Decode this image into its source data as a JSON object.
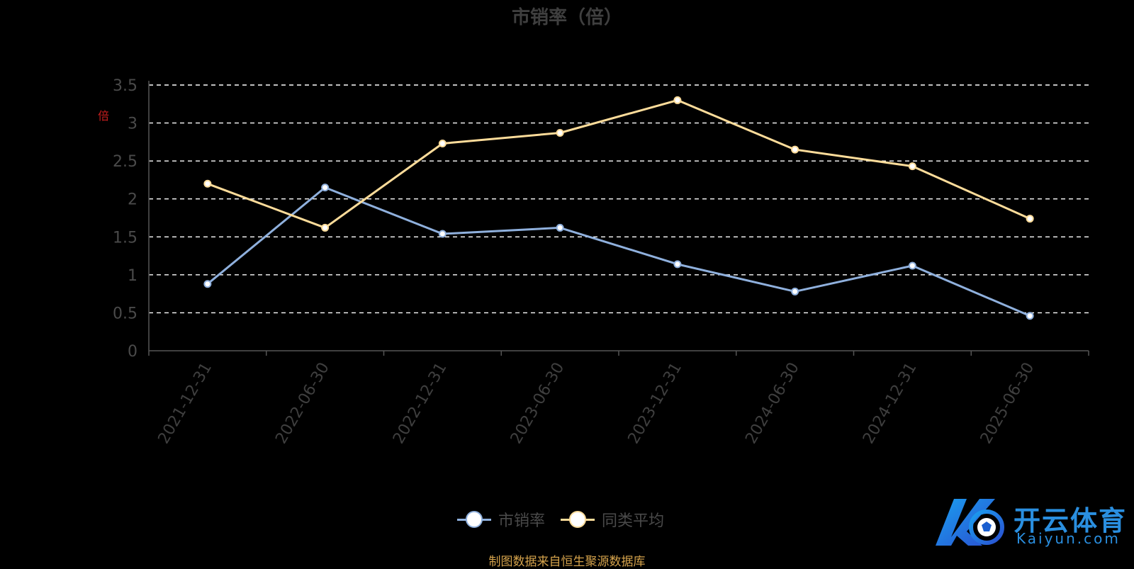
{
  "chart_data": {
    "type": "line",
    "title": "市销率（倍）",
    "y_unit_label": "倍",
    "categories": [
      "2021-12-31",
      "2022-06-30",
      "2022-12-31",
      "2023-06-30",
      "2023-12-31",
      "2024-06-30",
      "2024-12-31",
      "2025-06-30"
    ],
    "series": [
      {
        "name": "市销率",
        "values": [
          0.88,
          2.15,
          1.54,
          1.62,
          1.14,
          0.78,
          1.12,
          0.46
        ],
        "color": "#8fb0dd"
      },
      {
        "name": "同类平均",
        "values": [
          2.2,
          1.62,
          2.73,
          2.87,
          3.3,
          2.65,
          2.43,
          1.74
        ],
        "color": "#fddc9a"
      }
    ],
    "y_ticks": [
      "0",
      "0.5",
      "1",
      "1.5",
      "2",
      "2.5",
      "3",
      "3.5"
    ],
    "ylim": [
      0,
      3.5
    ],
    "grid": true,
    "grid_style": "dashed",
    "legend_position": "bottom-center",
    "source_note": "制图数据来自恒生聚源数据库"
  },
  "watermark": {
    "text_cn": "开云体育",
    "text_en": "Kaiyun.com"
  }
}
